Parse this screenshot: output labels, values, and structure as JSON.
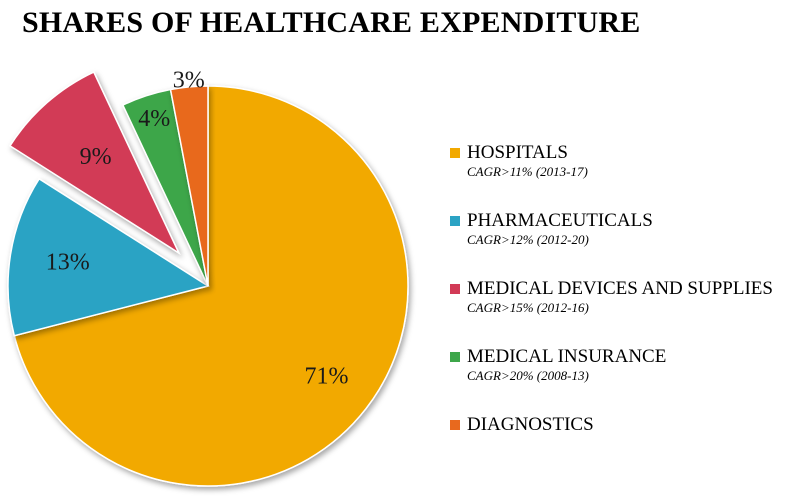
{
  "chart_data": {
    "type": "pie",
    "title": "SHARES OF HEALTHCARE EXPENDITURE",
    "categories": [
      "HOSPITALS",
      "PHARMACEUTICALS",
      "MEDICAL DEVICES AND SUPPLIES",
      "MEDICAL INSURANCE",
      "DIAGNOSTICS"
    ],
    "values": [
      71,
      13,
      9,
      4,
      3
    ],
    "value_labels": [
      "71%",
      "13%",
      "9%",
      "4%",
      "3%"
    ],
    "unit": "%",
    "legend_position": "right",
    "exploded_slice": "MEDICAL DEVICES AND SUPPLIES",
    "colors": [
      "#F2A900",
      "#2BA3C4",
      "#D23A56",
      "#3DA64A",
      "#E8691E"
    ],
    "legend": [
      {
        "label": "HOSPITALS",
        "note": "CAGR>11% (2013-17)"
      },
      {
        "label": "PHARMACEUTICALS",
        "note": "CAGR>12% (2012-20)"
      },
      {
        "label": "MEDICAL DEVICES AND SUPPLIES",
        "note": "CAGR>15% (2012-16)"
      },
      {
        "label": "MEDICAL INSURANCE",
        "note": "CAGR>20% (2008-13)"
      },
      {
        "label": "DIAGNOSTICS",
        "note": ""
      }
    ]
  }
}
